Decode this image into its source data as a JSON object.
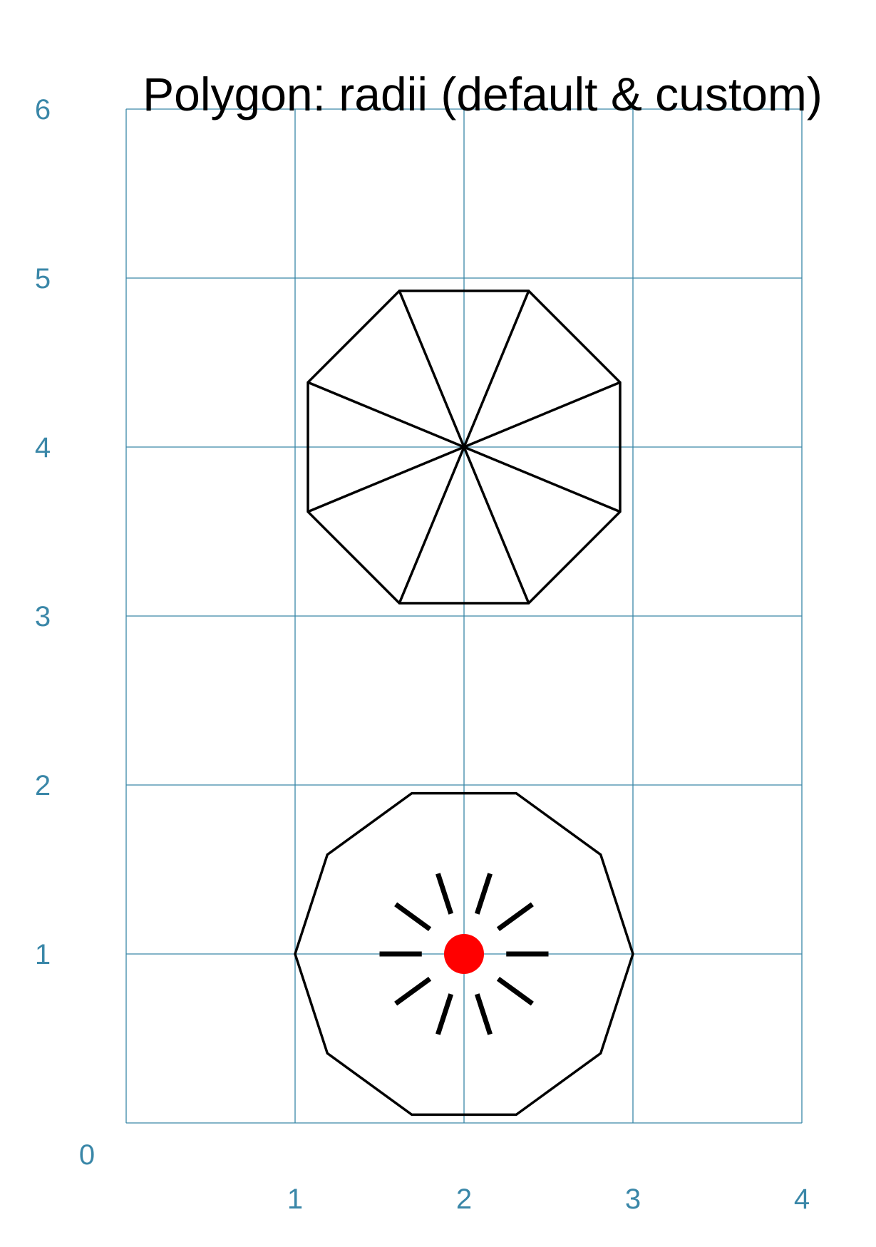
{
  "title": "Polygon: radii (default & custom)",
  "colors": {
    "grid": "#3a87a8",
    "shape": "#000000",
    "center_dot": "#ff0000",
    "background": "#ffffff"
  },
  "grid": {
    "x_range": [
      0,
      4
    ],
    "y_range": [
      0,
      6
    ],
    "x_ticks": [
      "1",
      "2",
      "3",
      "4"
    ],
    "y_ticks": [
      "0",
      "1",
      "2",
      "3",
      "4",
      "5",
      "6"
    ]
  },
  "shapes": {
    "octagon": {
      "sides": 8,
      "center": [
        2,
        4
      ],
      "radius": 1,
      "rotation_deg": 22.5,
      "radii": "default"
    },
    "decagon": {
      "sides": 10,
      "center": [
        2,
        1
      ],
      "radius": 1,
      "rotation_deg": 0,
      "radii": "custom",
      "center_dot": true
    }
  }
}
